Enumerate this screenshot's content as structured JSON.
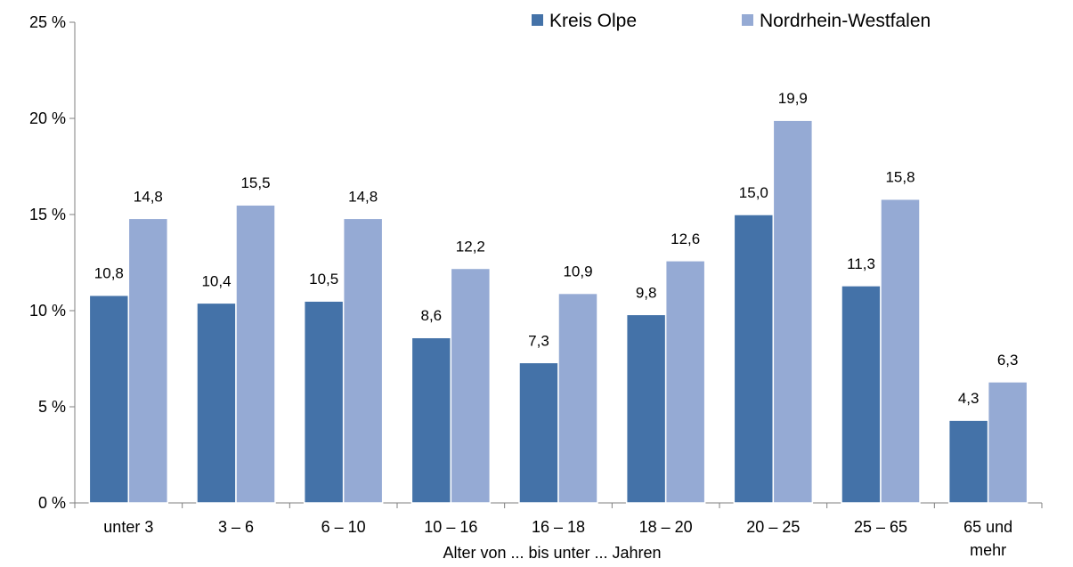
{
  "chart_data": {
    "type": "bar",
    "categories": [
      "unter 3",
      "3 –  6",
      "6 – 10",
      "10 – 16",
      "16 – 18",
      "18 – 20",
      "20 – 25",
      "25 – 65",
      "65 und mehr"
    ],
    "series": [
      {
        "name": "Kreis Olpe",
        "values": [
          10.8,
          10.4,
          10.5,
          8.6,
          7.3,
          9.8,
          15.0,
          11.3,
          4.3
        ],
        "color": "#4472A8"
      },
      {
        "name": "Nordrhein-Westfalen",
        "values": [
          14.8,
          15.5,
          14.8,
          12.2,
          10.9,
          12.6,
          19.9,
          15.8,
          6.3
        ],
        "color": "#95AAD4"
      }
    ],
    "data_labels": [
      [
        "10,8",
        "10,4",
        "10,5",
        "8,6",
        "7,3",
        "9,8",
        "15,0",
        "11,3",
        "4,3"
      ],
      [
        "14,8",
        "15,5",
        "14,8",
        "12,2",
        "10,9",
        "12,6",
        "19,9",
        "15,8",
        "6,3"
      ]
    ],
    "yticks": [
      0,
      5,
      10,
      15,
      20,
      25
    ],
    "ytick_labels": [
      "0 %",
      "5 %",
      "10 %",
      "15 %",
      "20 %",
      "25 %"
    ],
    "ylim": [
      0,
      25
    ],
    "xlabel": "Alter von ... bis unter ... Jahren",
    "ylabel": "",
    "title": "",
    "grid": false,
    "legend_position": "top-right"
  }
}
